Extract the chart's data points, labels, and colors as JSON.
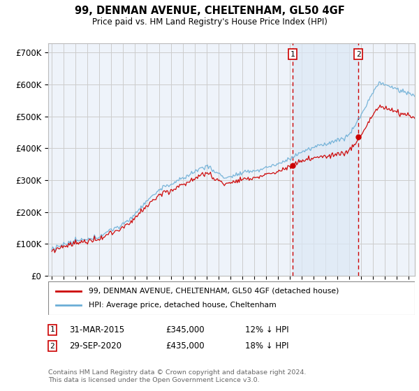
{
  "title": "99, DENMAN AVENUE, CHELTENHAM, GL50 4GF",
  "subtitle": "Price paid vs. HM Land Registry's House Price Index (HPI)",
  "ylim": [
    0,
    730000
  ],
  "yticks": [
    0,
    100000,
    200000,
    300000,
    400000,
    500000,
    600000,
    700000
  ],
  "ytick_labels": [
    "£0",
    "£100K",
    "£200K",
    "£300K",
    "£400K",
    "£500K",
    "£600K",
    "£700K"
  ],
  "xlim_start": 1994.7,
  "xlim_end": 2025.5,
  "sale1_x": 2015.25,
  "sale1_y": 345000,
  "sale2_x": 2020.75,
  "sale2_y": 435000,
  "hpi_color": "#6baed6",
  "price_color": "#cc0000",
  "grid_color": "#cccccc",
  "background_color": "#eef3fa",
  "shade_color": "#dce8f5",
  "legend_line1": "99, DENMAN AVENUE, CHELTENHAM, GL50 4GF (detached house)",
  "legend_line2": "HPI: Average price, detached house, Cheltenham",
  "footer": "Contains HM Land Registry data © Crown copyright and database right 2024.\nThis data is licensed under the Open Government Licence v3.0."
}
